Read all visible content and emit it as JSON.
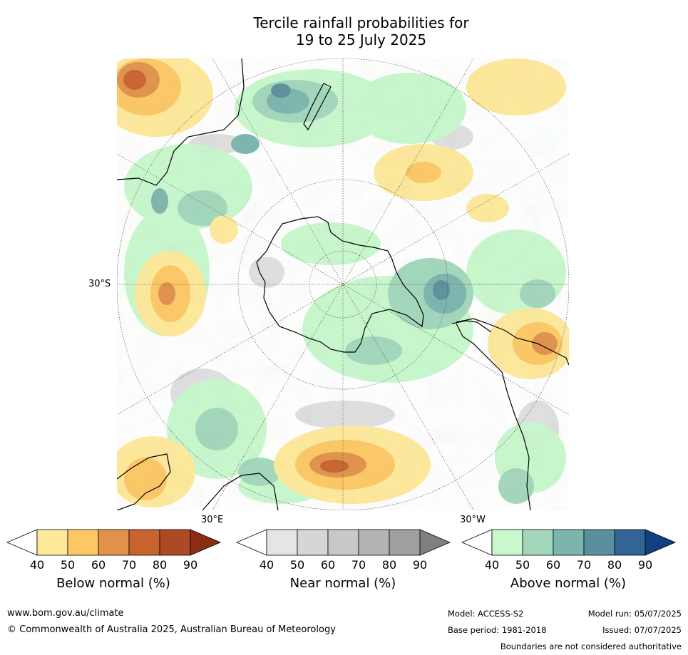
{
  "title": {
    "line1": "Tercile rainfall probabilities for",
    "line2": "19 to 25 July 2025"
  },
  "map": {
    "projection": "south-polar",
    "gridline_labels": {
      "lat": "30°S",
      "lon_east": "30°E",
      "lon_west": "30°W"
    }
  },
  "legends": [
    {
      "label": "Below normal (%)",
      "ticks": [
        "40",
        "50",
        "60",
        "70",
        "80",
        "90"
      ],
      "colors": [
        "#ffffff",
        "#fee99a",
        "#fdc864",
        "#e0924a",
        "#c8632f",
        "#ad4a25",
        "#8b2c13"
      ]
    },
    {
      "label": "Near normal (%)",
      "ticks": [
        "40",
        "50",
        "60",
        "70",
        "80",
        "90"
      ],
      "colors": [
        "#ffffff",
        "#e5e5e5",
        "#d6d6d6",
        "#c8c8c8",
        "#b4b4b4",
        "#a0a0a0",
        "#7f7f7f"
      ]
    },
    {
      "label": "Above normal (%)",
      "ticks": [
        "40",
        "50",
        "60",
        "70",
        "80",
        "90"
      ],
      "colors": [
        "#ffffff",
        "#c8f8cc",
        "#a2d7bb",
        "#7bb5ad",
        "#5a8f9d",
        "#326596",
        "#123f82"
      ]
    }
  ],
  "footer": {
    "url": "www.bom.gov.au/climate",
    "copyright": "© Commonwealth of Australia 2025, Australian Bureau of Meteorology",
    "model": "Model: ACCESS-S2",
    "base_period": "Base period: 1981-2018",
    "model_run": "Model run: 05/07/2025",
    "issued": "Issued: 07/07/2025",
    "disclaimer": "Boundaries are not considered authoritative"
  }
}
